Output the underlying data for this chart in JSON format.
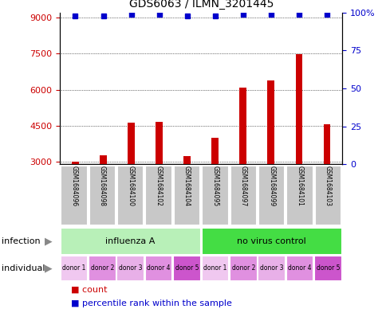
{
  "title": "GDS6063 / ILMN_3201445",
  "samples": [
    "GSM1684096",
    "GSM1684098",
    "GSM1684100",
    "GSM1684102",
    "GSM1684104",
    "GSM1684095",
    "GSM1684097",
    "GSM1684099",
    "GSM1684101",
    "GSM1684103"
  ],
  "counts": [
    3020,
    3280,
    4620,
    4650,
    3230,
    4000,
    6100,
    6380,
    7480,
    4560
  ],
  "percentile_ranks": [
    98,
    98,
    99,
    99,
    98,
    98,
    99,
    99,
    99,
    99
  ],
  "bar_color": "#cc0000",
  "dot_color": "#0000cc",
  "ylim_left": [
    2900,
    9200
  ],
  "ylim_right": [
    0,
    100
  ],
  "yticks_left": [
    3000,
    4500,
    6000,
    7500,
    9000
  ],
  "yticks_right": [
    0,
    25,
    50,
    75,
    100
  ],
  "infection_groups": [
    {
      "label": "influenza A",
      "start": 0,
      "end": 5,
      "color": "#b8f0b8"
    },
    {
      "label": "no virus control",
      "start": 5,
      "end": 10,
      "color": "#44dd44"
    }
  ],
  "individual_labels": [
    "donor 1",
    "donor 2",
    "donor 3",
    "donor 4",
    "donor 5",
    "donor 1",
    "donor 2",
    "donor 3",
    "donor 4",
    "donor 5"
  ],
  "individual_colors": [
    "#f0c8f0",
    "#e090e0",
    "#e8b0e8",
    "#e090e0",
    "#cc55cc",
    "#f0c8f0",
    "#e090e0",
    "#e8b0e8",
    "#e090e0",
    "#cc55cc"
  ],
  "legend_count_color": "#cc0000",
  "legend_dot_color": "#0000cc",
  "xlabel_infection": "infection",
  "xlabel_individual": "individual",
  "grid_color": "black"
}
